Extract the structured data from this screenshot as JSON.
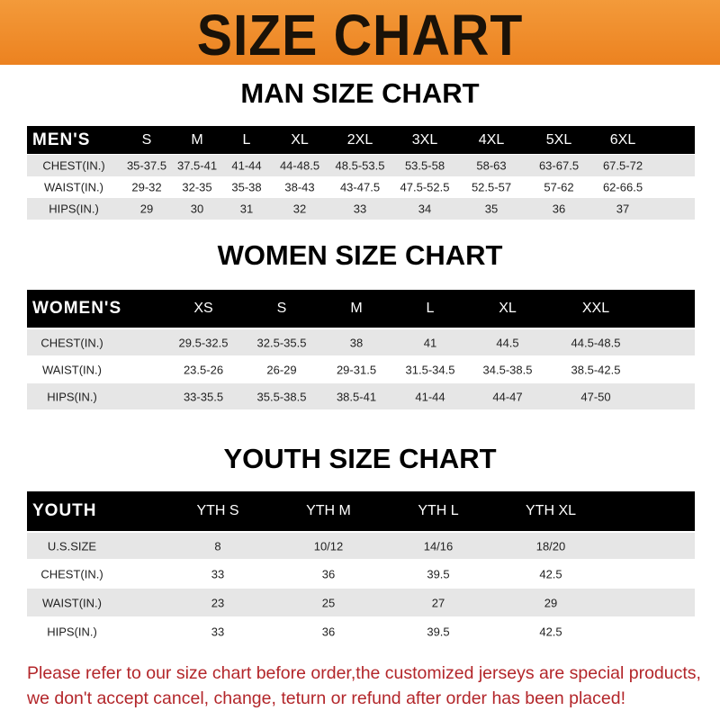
{
  "title": "SIZE CHART",
  "colors": {
    "banner": "#ee8a28",
    "header_row": "#000000",
    "stripe": "#e6e6e6",
    "notice": "#b3262a"
  },
  "men": {
    "title": "MAN SIZE CHART",
    "header": [
      "MEN'S",
      "S",
      "M",
      "L",
      "XL",
      "2XL",
      "3XL",
      "4XL",
      "5XL",
      "6XL"
    ],
    "rows": [
      [
        "CHEST(IN.)",
        "35-37.5",
        "37.5-41",
        "41-44",
        "44-48.5",
        "48.5-53.5",
        "53.5-58",
        "58-63",
        "63-67.5",
        "67.5-72"
      ],
      [
        "WAIST(IN.)",
        "29-32",
        "32-35",
        "35-38",
        "38-43",
        "43-47.5",
        "47.5-52.5",
        "52.5-57",
        "57-62",
        "62-66.5"
      ],
      [
        "HIPS(IN.)",
        "29",
        "30",
        "31",
        "32",
        "33",
        "34",
        "35",
        "36",
        "37"
      ]
    ]
  },
  "women": {
    "title": "WOMEN SIZE CHART",
    "header": [
      "WOMEN'S",
      "XS",
      "S",
      "M",
      "L",
      "XL",
      "XXL"
    ],
    "rows": [
      [
        "CHEST(IN.)",
        "29.5-32.5",
        "32.5-35.5",
        "38",
        "41",
        "44.5",
        "44.5-48.5"
      ],
      [
        "WAIST(IN.)",
        "23.5-26",
        "26-29",
        "29-31.5",
        "31.5-34.5",
        "34.5-38.5",
        "38.5-42.5"
      ],
      [
        "HIPS(IN.)",
        "33-35.5",
        "35.5-38.5",
        "38.5-41",
        "41-44",
        "44-47",
        "47-50"
      ]
    ]
  },
  "youth": {
    "title": "YOUTH SIZE CHART",
    "header": [
      "YOUTH",
      "YTH S",
      "YTH M",
      "YTH L",
      "YTH XL"
    ],
    "rows": [
      [
        "U.S.SIZE",
        "8",
        "10/12",
        "14/16",
        "18/20"
      ],
      [
        "CHEST(IN.)",
        "33",
        "36",
        "39.5",
        "42.5"
      ],
      [
        "WAIST(IN.)",
        "23",
        "25",
        "27",
        "29"
      ],
      [
        "HIPS(IN.)",
        "33",
        "36",
        "39.5",
        "42.5"
      ]
    ]
  },
  "notice": {
    "line1": "Please refer to our size chart before order,the customized jerseys are special products,",
    "line2": "we don't accept cancel, change, teturn or refund after order has been placed!"
  }
}
